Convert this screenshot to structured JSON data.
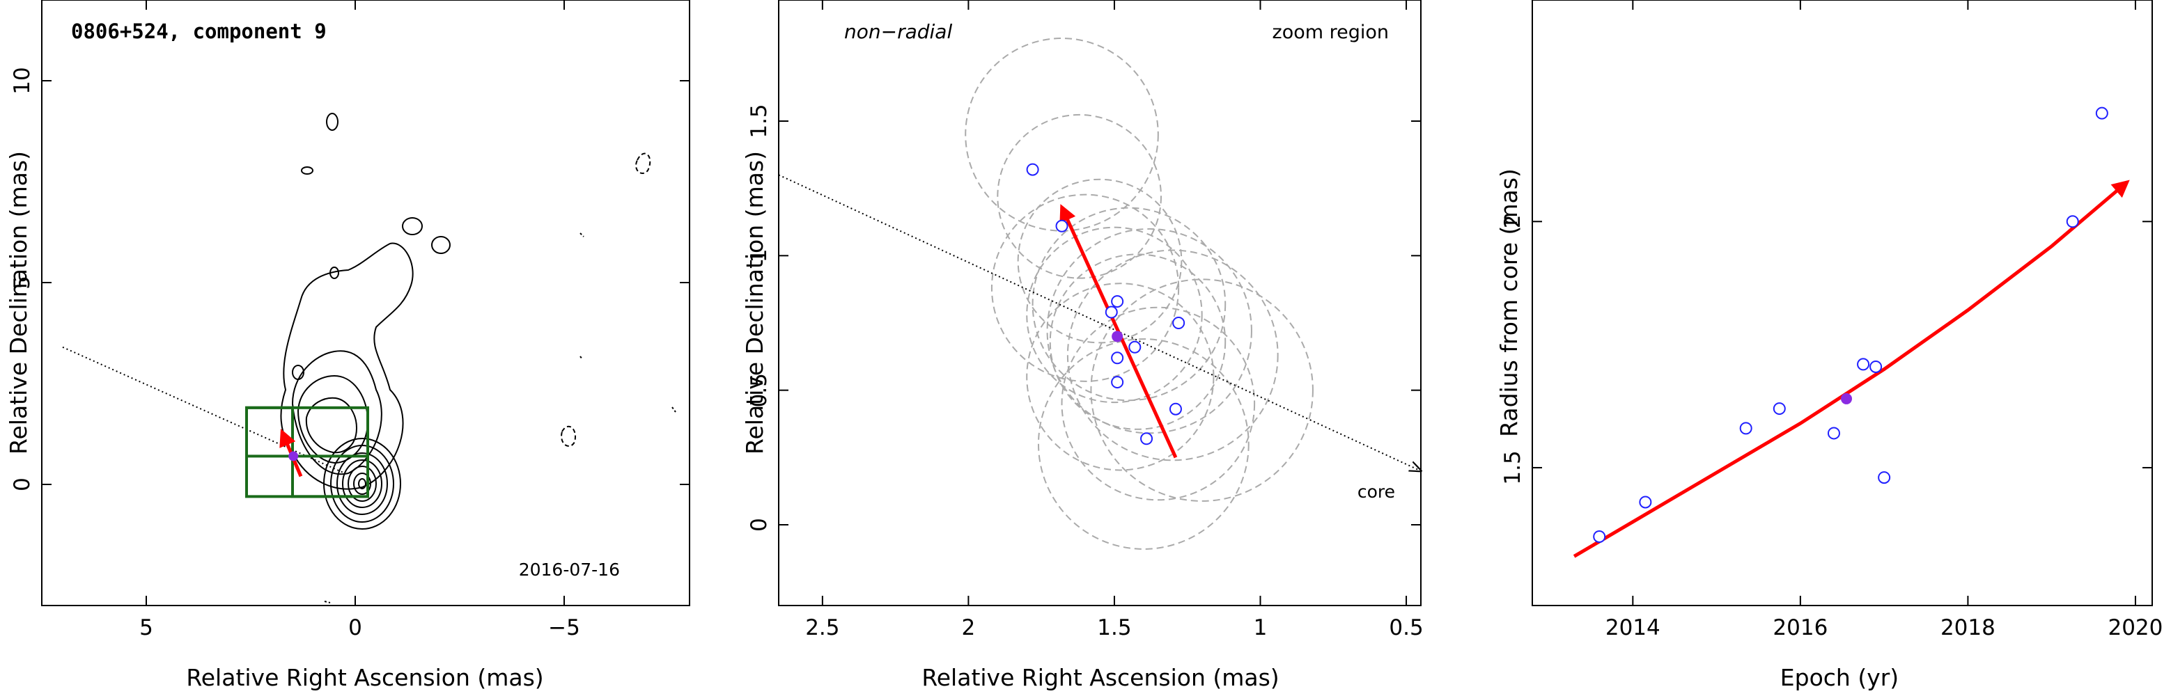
{
  "chart_data": [
    {
      "type": "scatter",
      "panel": "image",
      "title": "0806+524, component 9",
      "date_label": "2016-07-16",
      "xlabel": "Relative Right Ascension (mas)",
      "ylabel": "Relative Declination (mas)",
      "xlim": [
        7.5,
        -8
      ],
      "ylim": [
        -3,
        12
      ],
      "x_ticks": [
        5,
        0,
        -5
      ],
      "x_tick_labels": [
        "5",
        "0",
        "−5"
      ],
      "y_ticks": [
        0,
        5,
        10
      ],
      "y_tick_labels": [
        "0",
        "5",
        "10"
      ],
      "grid": false,
      "ridge_line": {
        "from": [
          7.0,
          3.4
        ],
        "to": [
          0.3,
          0.3
        ]
      },
      "component_position": {
        "x": 1.48,
        "y": 0.7
      },
      "motion_vector": {
        "from": [
          1.3,
          0.2
        ],
        "to": [
          1.75,
          1.3
        ]
      },
      "zoom_boxes": [
        {
          "x": [
            2.6,
            -0.3
          ],
          "y": [
            -0.3,
            1.9
          ]
        },
        {
          "x": [
            2.6,
            1.5
          ],
          "y": [
            0.7,
            1.9
          ]
        },
        {
          "x": [
            1.5,
            -0.3
          ],
          "y": [
            -0.3,
            0.7
          ]
        }
      ],
      "colors": {
        "contour": "#000000",
        "box": "#1a6b1a",
        "vector": "#ff0000",
        "component": "#8a2be2"
      }
    },
    {
      "type": "scatter",
      "panel": "zoom",
      "annotation_left": "non−radial",
      "annotation_right": "zoom region",
      "core_label": "core",
      "xlabel": "Relative Right Ascension (mas)",
      "ylabel": "Relative Declination (mas)",
      "xlim": [
        2.65,
        0.45
      ],
      "ylim": [
        -0.3,
        1.95
      ],
      "x_ticks": [
        2.5,
        2,
        1.5,
        1,
        0.5
      ],
      "x_tick_labels": [
        "2.5",
        "2",
        "1.5",
        "1",
        "0.5"
      ],
      "y_ticks": [
        0,
        0.5,
        1,
        1.5
      ],
      "y_tick_labels": [
        "0",
        "0.5",
        "1",
        "1.5"
      ],
      "grid": false,
      "points": [
        {
          "x": 1.78,
          "y": 1.32
        },
        {
          "x": 1.68,
          "y": 1.11
        },
        {
          "x": 1.49,
          "y": 0.83
        },
        {
          "x": 1.51,
          "y": 0.79
        },
        {
          "x": 1.28,
          "y": 0.75
        },
        {
          "x": 1.43,
          "y": 0.66
        },
        {
          "x": 1.49,
          "y": 0.62
        },
        {
          "x": 1.49,
          "y": 0.53
        },
        {
          "x": 1.29,
          "y": 0.43
        },
        {
          "x": 1.39,
          "y": 0.32
        }
      ],
      "highlight_point": {
        "x": 1.49,
        "y": 0.7
      },
      "circles": [
        {
          "cx": 1.68,
          "cy": 1.45,
          "r": 0.33
        },
        {
          "cx": 1.62,
          "cy": 1.22,
          "r": 0.28
        },
        {
          "cx": 1.55,
          "cy": 0.98,
          "r": 0.28
        },
        {
          "cx": 1.6,
          "cy": 0.88,
          "r": 0.32
        },
        {
          "cx": 1.45,
          "cy": 0.82,
          "r": 0.33
        },
        {
          "cx": 1.5,
          "cy": 0.78,
          "r": 0.3
        },
        {
          "cx": 1.38,
          "cy": 0.72,
          "r": 0.35
        },
        {
          "cx": 1.42,
          "cy": 0.68,
          "r": 0.3
        },
        {
          "cx": 1.3,
          "cy": 0.63,
          "r": 0.36
        },
        {
          "cx": 1.48,
          "cy": 0.55,
          "r": 0.32
        },
        {
          "cx": 1.2,
          "cy": 0.5,
          "r": 0.38
        },
        {
          "cx": 1.35,
          "cy": 0.45,
          "r": 0.33
        },
        {
          "cx": 1.4,
          "cy": 0.3,
          "r": 0.36
        }
      ],
      "core_direction": {
        "from": [
          2.65,
          1.3
        ],
        "to": [
          0.45,
          0.2
        ]
      },
      "motion_vector": {
        "from": [
          1.29,
          0.25
        ],
        "to": [
          1.68,
          1.18
        ]
      },
      "colors": {
        "points": "#2020ff",
        "highlight": "#8a2be2",
        "circles": "#aaaaaa",
        "vector": "#ff0000"
      }
    },
    {
      "type": "scatter",
      "panel": "radius",
      "xlabel": "Epoch (yr)",
      "ylabel": "Radius from core (mas)",
      "xlim": [
        2012.8,
        2020.2
      ],
      "ylim": [
        1.22,
        2.45
      ],
      "x_ticks": [
        2014,
        2016,
        2018,
        2020
      ],
      "x_tick_labels": [
        "2014",
        "2016",
        "2018",
        "2020"
      ],
      "y_ticks": [
        1.5,
        2
      ],
      "y_tick_labels": [
        "1.5",
        "2"
      ],
      "grid": false,
      "points": [
        {
          "x": 2013.6,
          "y": 1.36
        },
        {
          "x": 2014.15,
          "y": 1.43
        },
        {
          "x": 2015.35,
          "y": 1.58
        },
        {
          "x": 2015.75,
          "y": 1.62
        },
        {
          "x": 2016.4,
          "y": 1.57
        },
        {
          "x": 2016.75,
          "y": 1.71
        },
        {
          "x": 2016.9,
          "y": 1.705
        },
        {
          "x": 2017.0,
          "y": 1.48
        },
        {
          "x": 2019.25,
          "y": 2.0
        },
        {
          "x": 2019.6,
          "y": 2.22
        }
      ],
      "highlight_point": {
        "x": 2016.55,
        "y": 1.64
      },
      "fit_curve": {
        "x": [
          2013.3,
          2014.0,
          2015.0,
          2016.0,
          2017.0,
          2018.0,
          2019.0,
          2019.9
        ],
        "y": [
          1.32,
          1.39,
          1.49,
          1.59,
          1.7,
          1.82,
          1.95,
          2.08
        ]
      },
      "colors": {
        "points": "#2020ff",
        "highlight": "#8a2be2",
        "curve": "#ff0000"
      }
    }
  ]
}
